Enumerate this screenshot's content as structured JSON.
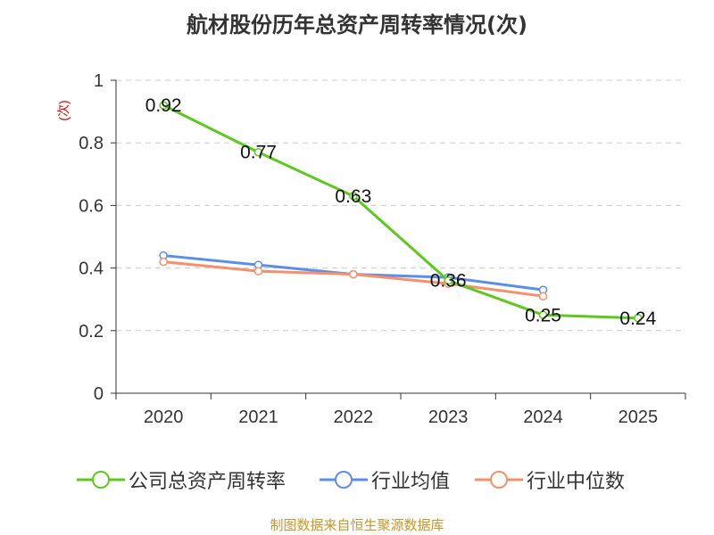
{
  "title": "航材股份历年总资产周转率情况(次)",
  "source": "制图数据来自恒生聚源数据库",
  "chart_data": {
    "type": "line",
    "title": "航材股份历年总资产周转率情况(次)",
    "ylabel": "(次)",
    "xlabel": "",
    "categories": [
      "2020",
      "2021",
      "2022",
      "2023",
      "2024",
      "2025"
    ],
    "ylim": [
      0,
      1
    ],
    "yticks": [
      "0",
      "0.2",
      "0.4",
      "0.6",
      "0.8",
      "1"
    ],
    "grid": true,
    "legend_position": "bottom",
    "series": [
      {
        "name": "公司总资产周转率",
        "color": "#5ec81e",
        "values": [
          0.92,
          0.77,
          0.63,
          0.36,
          0.25,
          0.24
        ],
        "labels": [
          "0.92",
          "0.77",
          "0.63",
          "0.36",
          "0.25",
          "0.24"
        ]
      },
      {
        "name": "行业均值",
        "color": "#5b8ee6",
        "values": [
          0.44,
          0.41,
          0.38,
          0.37,
          0.33,
          null
        ]
      },
      {
        "name": "行业中位数",
        "color": "#f5906b",
        "values": [
          0.42,
          0.39,
          0.38,
          0.35,
          0.31,
          null
        ]
      }
    ]
  }
}
